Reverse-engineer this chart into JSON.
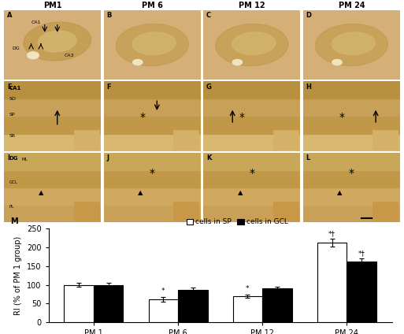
{
  "categories": [
    "PM 1",
    "PM 6",
    "PM 12",
    "PM 24"
  ],
  "sp_values": [
    100,
    62,
    70,
    213
  ],
  "gcl_values": [
    100,
    87,
    90,
    162
  ],
  "sp_errors": [
    5,
    6,
    5,
    10
  ],
  "gcl_errors": [
    6,
    7,
    5,
    8
  ],
  "sp_color": "#ffffff",
  "gcl_color": "#000000",
  "bar_edge_color": "#000000",
  "ylabel": "RI (% of PM 1 group)",
  "ylim": [
    0,
    250
  ],
  "yticks": [
    0,
    50,
    100,
    150,
    200,
    250
  ],
  "legend_sp": "cells in SP",
  "legend_gcl": "cells in GCL",
  "panel_label": "M",
  "sp_annotations": [
    "",
    "*",
    "*",
    "*†"
  ],
  "gcl_annotations": [
    "",
    "",
    "",
    "*†"
  ],
  "background_color": "#ffffff",
  "bar_width": 0.35,
  "col_titles": [
    "PM1",
    "PM 6",
    "PM 12",
    "PM 24"
  ],
  "panel_bg_light": "#c8a05a",
  "panel_bg_dark": "#a07830",
  "tissue_color1": "#c8a060",
  "tissue_color2": "#b08840",
  "tissue_color3": "#d4b070",
  "tissue_white": "#e8d4a0",
  "axis_fontsize": 7,
  "tick_fontsize": 7
}
